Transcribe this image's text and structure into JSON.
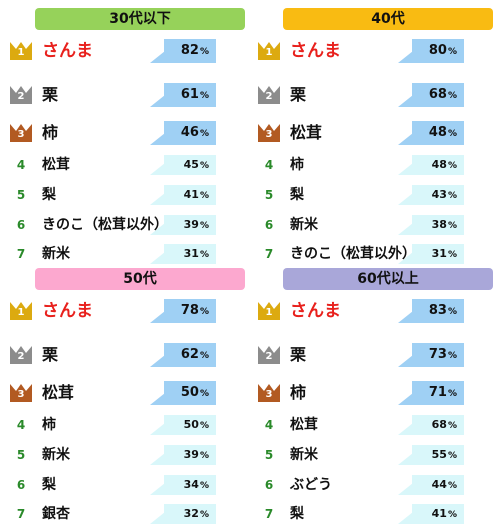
{
  "colors": {
    "header_30s": "#96d25a",
    "header_40s": "#f9bb12",
    "header_50s": "#fca8cf",
    "header_60s": "#a9a7d9",
    "gold": "#dcaa10",
    "silver": "#8c8c8c",
    "bronze": "#b25a22",
    "rank1_text": "#e8201c",
    "rank_number": "#2a8a2a",
    "bubble_top3": "#9fd0f4",
    "bubble_rest": "#d9f7fa"
  },
  "percent_unit": "%",
  "panels": [
    {
      "title": "30代以下",
      "header_color": "#96d25a",
      "items": [
        {
          "rank": "1",
          "name": "さんま",
          "value": "82"
        },
        {
          "rank": "2",
          "name": "栗",
          "value": "61"
        },
        {
          "rank": "3",
          "name": "柿",
          "value": "46"
        },
        {
          "rank": "4",
          "name": "松茸",
          "value": "45"
        },
        {
          "rank": "5",
          "name": "梨",
          "value": "41"
        },
        {
          "rank": "6",
          "name": "きのこ（松茸以外）",
          "value": "39"
        },
        {
          "rank": "7",
          "name": "新米",
          "value": "31"
        }
      ]
    },
    {
      "title": "40代",
      "header_color": "#f9bb12",
      "items": [
        {
          "rank": "1",
          "name": "さんま",
          "value": "80"
        },
        {
          "rank": "2",
          "name": "栗",
          "value": "68"
        },
        {
          "rank": "3",
          "name": "松茸",
          "value": "48"
        },
        {
          "rank": "4",
          "name": "柿",
          "value": "48"
        },
        {
          "rank": "5",
          "name": "梨",
          "value": "43"
        },
        {
          "rank": "6",
          "name": "新米",
          "value": "38"
        },
        {
          "rank": "7",
          "name": "きのこ（松茸以外）",
          "value": "31"
        }
      ]
    },
    {
      "title": "50代",
      "header_color": "#fca8cf",
      "items": [
        {
          "rank": "1",
          "name": "さんま",
          "value": "78"
        },
        {
          "rank": "2",
          "name": "栗",
          "value": "62"
        },
        {
          "rank": "3",
          "name": "松茸",
          "value": "50"
        },
        {
          "rank": "4",
          "name": "柿",
          "value": "50"
        },
        {
          "rank": "5",
          "name": "新米",
          "value": "39"
        },
        {
          "rank": "6",
          "name": "梨",
          "value": "34"
        },
        {
          "rank": "7",
          "name": "銀杏",
          "value": "32"
        }
      ]
    },
    {
      "title": "60代以上",
      "header_color": "#a9a7d9",
      "items": [
        {
          "rank": "1",
          "name": "さんま",
          "value": "83"
        },
        {
          "rank": "2",
          "name": "栗",
          "value": "73"
        },
        {
          "rank": "3",
          "name": "柿",
          "value": "71"
        },
        {
          "rank": "4",
          "name": "松茸",
          "value": "68"
        },
        {
          "rank": "5",
          "name": "新米",
          "value": "55"
        },
        {
          "rank": "6",
          "name": "ぶどう",
          "value": "44"
        },
        {
          "rank": "7",
          "name": "梨",
          "value": "41"
        }
      ]
    }
  ]
}
